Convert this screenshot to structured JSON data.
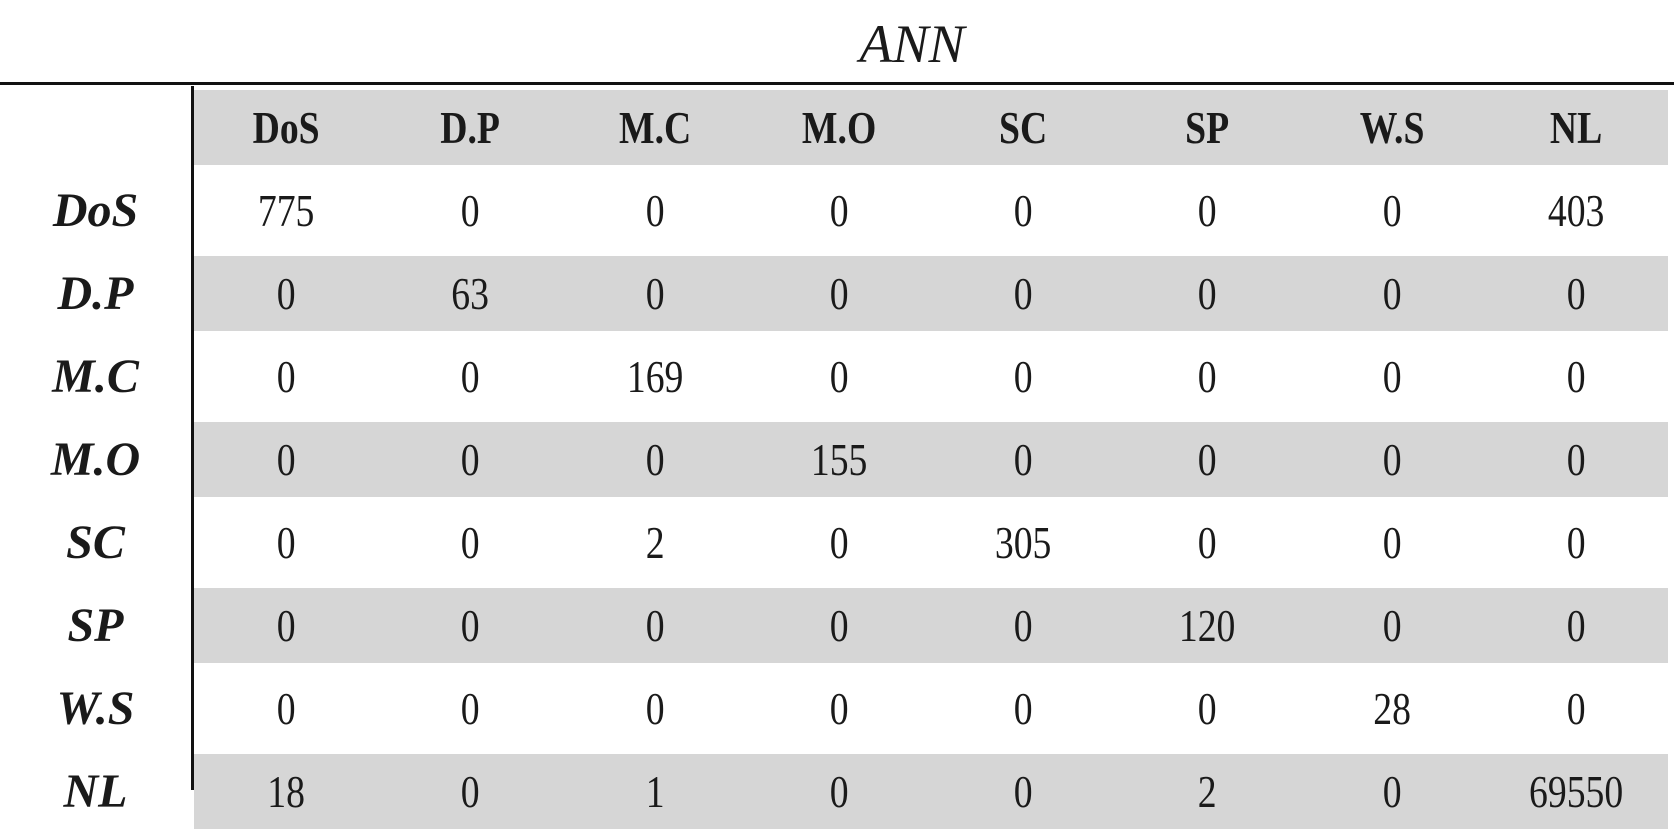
{
  "chart_data": {
    "type": "table",
    "title": "ANN",
    "columns": [
      "DoS",
      "D.P",
      "M.C",
      "M.O",
      "SC",
      "SP",
      "W.S",
      "NL"
    ],
    "rows": [
      {
        "label": "DoS",
        "values": [
          775,
          0,
          0,
          0,
          0,
          0,
          0,
          403
        ]
      },
      {
        "label": "D.P",
        "values": [
          0,
          63,
          0,
          0,
          0,
          0,
          0,
          0
        ]
      },
      {
        "label": "M.C",
        "values": [
          0,
          0,
          169,
          0,
          0,
          0,
          0,
          0
        ]
      },
      {
        "label": "M.O",
        "values": [
          0,
          0,
          0,
          155,
          0,
          0,
          0,
          0
        ]
      },
      {
        "label": "SC",
        "values": [
          0,
          0,
          2,
          0,
          305,
          0,
          0,
          0
        ]
      },
      {
        "label": "SP",
        "values": [
          0,
          0,
          0,
          0,
          0,
          120,
          0,
          0
        ]
      },
      {
        "label": "W.S",
        "values": [
          0,
          0,
          0,
          0,
          0,
          0,
          28,
          0
        ]
      },
      {
        "label": "NL",
        "values": [
          18,
          0,
          1,
          0,
          0,
          2,
          0,
          69550
        ]
      }
    ]
  }
}
